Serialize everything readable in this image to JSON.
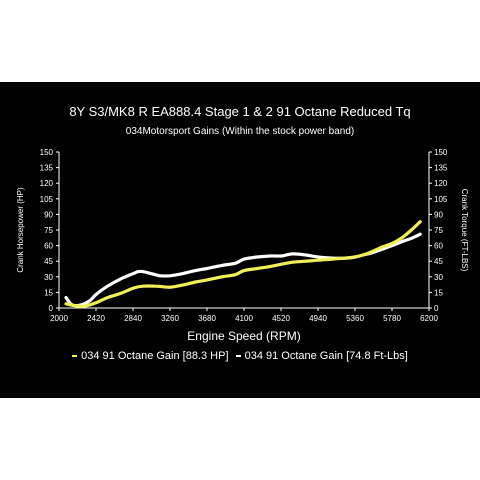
{
  "chart_data": {
    "type": "line",
    "title": "8Y S3/MK8 R EA888.4 Stage 1 & 2 91 Octane Reduced Tq",
    "subtitle": "034Motorsport Gains (Within the stock power band)",
    "xlabel": "Engine Speed (RPM)",
    "ylabel": "Crank Horsepower (HP)",
    "y2label": "Crank Torque (FT-LBS)",
    "xlim": [
      2000,
      6200
    ],
    "ylim": [
      0,
      150
    ],
    "y2lim": [
      0,
      150
    ],
    "x_ticks": [
      "2000",
      "2420",
      "2840",
      "3260",
      "3680",
      "4100",
      "4520",
      "4940",
      "5360",
      "5780",
      "6200"
    ],
    "y_ticks": [
      "0",
      "15",
      "30",
      "45",
      "60",
      "75",
      "90",
      "105",
      "120",
      "135",
      "150"
    ],
    "y2_ticks": [
      "0",
      "15",
      "30",
      "45",
      "60",
      "75",
      "90",
      "105",
      "120",
      "135",
      "150"
    ],
    "grid": false,
    "legend_position": "bottom",
    "series": [
      {
        "name": "034 91 Octane Gain [88.3 HP]",
        "axis": "left",
        "color": "#f0ef57",
        "x": [
          2080,
          2200,
          2300,
          2420,
          2550,
          2700,
          2840,
          2950,
          3100,
          3260,
          3400,
          3550,
          3680,
          3850,
          4000,
          4100,
          4250,
          4400,
          4520,
          4650,
          4800,
          4940,
          5100,
          5250,
          5360,
          5450,
          5550,
          5650,
          5780,
          5900,
          6000,
          6100
        ],
        "values": [
          4,
          2,
          2,
          5,
          10,
          14,
          19,
          21,
          21,
          20,
          22,
          25,
          27,
          30,
          32,
          36,
          38,
          40,
          42,
          44,
          45,
          46,
          47,
          48,
          49,
          51,
          54,
          58,
          62,
          68,
          75,
          83
        ]
      },
      {
        "name": "034 91 Octane Gain [74.8 Ft-Lbs]",
        "axis": "right",
        "color": "#ffffff",
        "x": [
          2080,
          2150,
          2250,
          2350,
          2420,
          2550,
          2700,
          2840,
          2900,
          2950,
          3050,
          3150,
          3260,
          3400,
          3550,
          3680,
          3850,
          4000,
          4100,
          4250,
          4400,
          4520,
          4650,
          4800,
          4940,
          5100,
          5250,
          5360,
          5450,
          5550,
          5650,
          5780,
          5900,
          6000,
          6100
        ],
        "values": [
          10,
          3,
          3,
          7,
          13,
          21,
          28,
          33,
          35,
          35,
          33,
          31,
          31,
          33,
          36,
          38,
          41,
          43,
          47,
          49,
          50,
          50,
          52,
          51,
          49,
          48,
          48,
          49,
          51,
          53,
          56,
          60,
          64,
          67,
          71
        ]
      }
    ]
  }
}
